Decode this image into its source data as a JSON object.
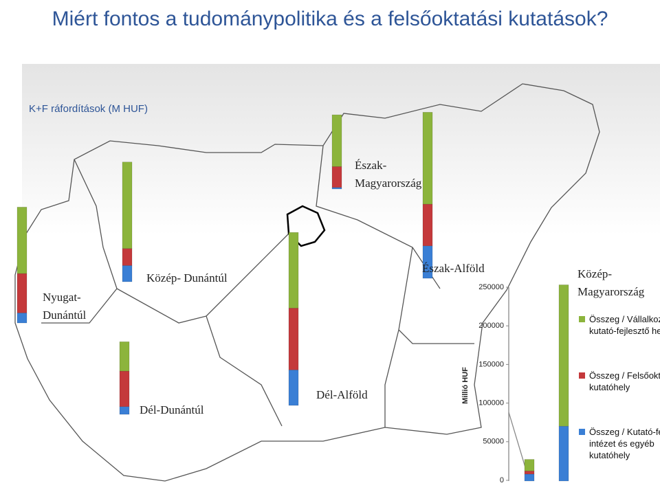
{
  "chart_data": {
    "type": "bar",
    "stacked": true,
    "title": "Miért fontos a tudománypolitika és a felsőoktatási kutatások?",
    "subtitle": "K+F ráfordítások (M HUF)",
    "y_label": "Millió HUF",
    "categories": [
      "Nyugat-Dunántúl",
      "Közép- Dunántúl",
      "Dél-Dunántúl",
      "Dél-Alföld",
      "Észak-Magyarország",
      "Észak-Alföld",
      null,
      "Közép-Magyarország"
    ],
    "series": [
      {
        "name": "Összeg / Vállalkozási kutató-fejlesztő hely",
        "color": "#8cb43c",
        "values": [
          86000,
          112000,
          38000,
          98000,
          67000,
          119000,
          15000,
          183000
        ]
      },
      {
        "name": "Összeg / Felsőoktatási kutatóhely",
        "color": "#c4393b",
        "values": [
          51000,
          22000,
          46000,
          80000,
          27000,
          54000,
          4000,
          0
        ]
      },
      {
        "name": "Összeg / Kutató-fejlesztő intézet és egyéb kutatóhely",
        "color": "#3a7fd5",
        "values": [
          13000,
          21000,
          10000,
          46000,
          2000,
          42000,
          9000,
          71000
        ]
      }
    ],
    "ylim": [
      0,
      250000
    ],
    "yticks": [
      0,
      50000,
      100000,
      150000,
      200000,
      250000
    ]
  }
}
